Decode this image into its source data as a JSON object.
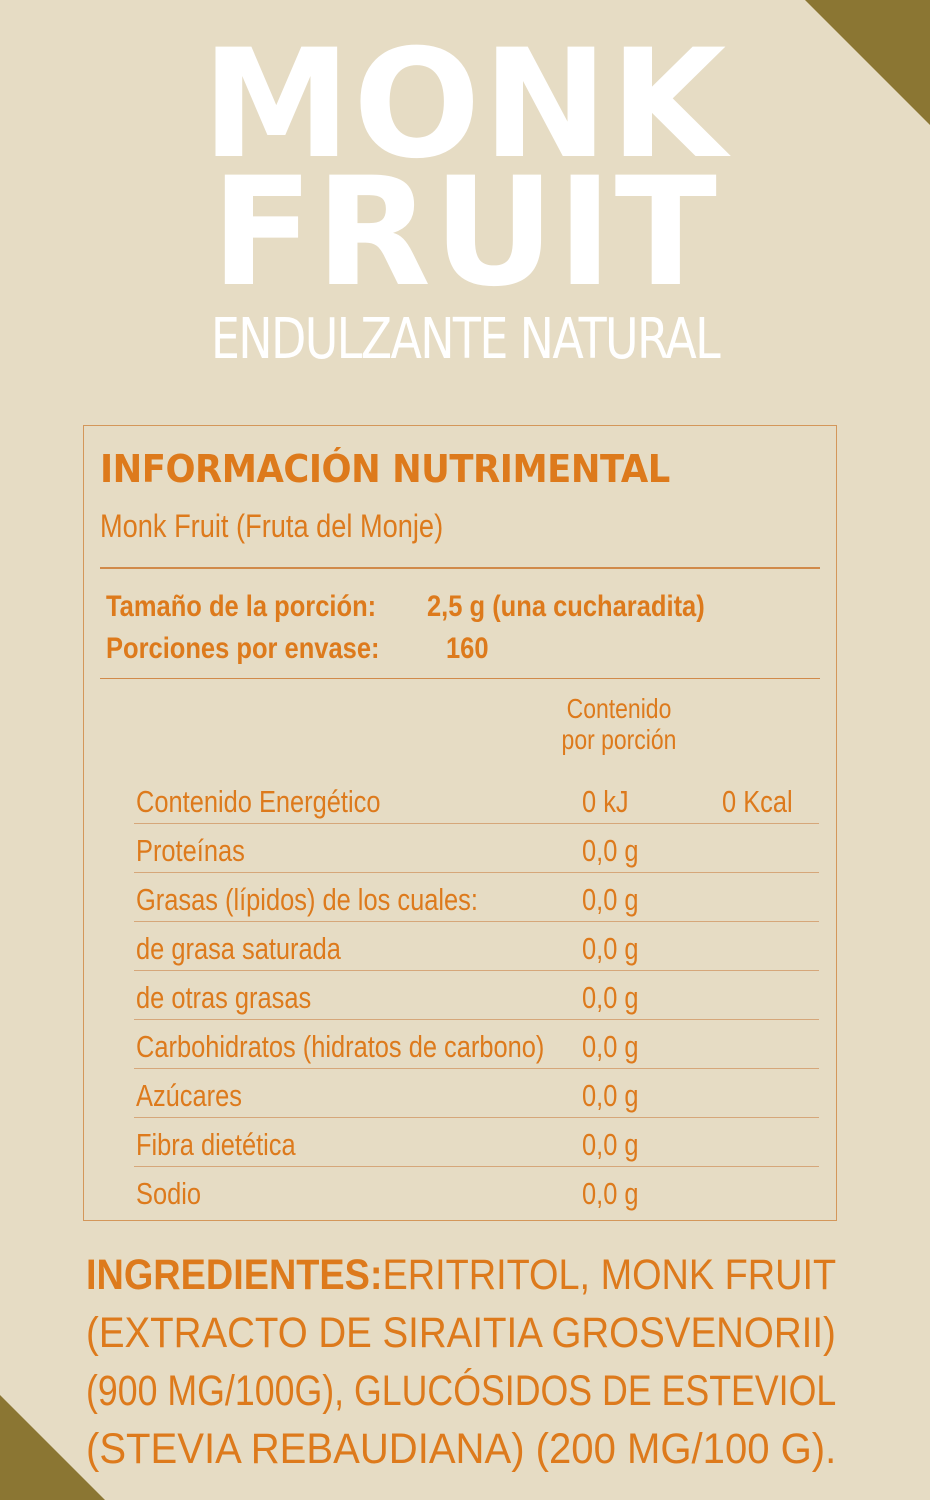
{
  "brand": {
    "line1": "MONK",
    "line2": "FRUIT",
    "subtitle": "ENDULZANTE NATURAL"
  },
  "nutrition": {
    "title": "INFORMACIÓN NUTRIMENTAL",
    "product": "Monk Fruit (Fruta del Monje)",
    "serving_size_label": "Tamaño de la porción:",
    "serving_size_value": "2,5 g (una cucharadita)",
    "servings_label": "Porciones por envase:",
    "servings_value": "160",
    "column_header_line1": "Contenido",
    "column_header_line2": "por porción",
    "rows": [
      {
        "label": "Contenido Energético",
        "value": "0 kJ",
        "kcal": "0 Kcal"
      },
      {
        "label": "Proteínas",
        "value": "0,0 g",
        "kcal": ""
      },
      {
        "label": "Grasas (lípidos) de los cuales:",
        "value": "0,0 g",
        "kcal": ""
      },
      {
        "label": "de grasa saturada",
        "value": "0,0 g",
        "kcal": ""
      },
      {
        "label": "de otras grasas",
        "value": "0,0 g",
        "kcal": ""
      },
      {
        "label": "Carbohidratos (hidratos de carbono)",
        "value": "0,0 g",
        "kcal": ""
      },
      {
        "label": "Azúcares",
        "value": "0,0 g",
        "kcal": ""
      },
      {
        "label": "Fibra dietética",
        "value": "0,0 g",
        "kcal": ""
      },
      {
        "label": "Sodio",
        "value": "0,0 g",
        "kcal": ""
      }
    ]
  },
  "ingredients": {
    "label": "INGREDIENTES:",
    "line1": "ERITRITOL, MONK FRUIT",
    "line2": "(EXTRACTO DE SIRAITIA GROSVENORII)",
    "line3": "(900 MG/100G), GLUCÓSIDOS DE ESTEVIOL",
    "line4": "(STEVIA REBAUDIANA) (200 MG/100 G)."
  },
  "colors": {
    "background": "#e6dcc4",
    "accent_orange": "#dd7a1c",
    "corner_gold": "#8b7633",
    "brand_text": "#ffffff"
  }
}
